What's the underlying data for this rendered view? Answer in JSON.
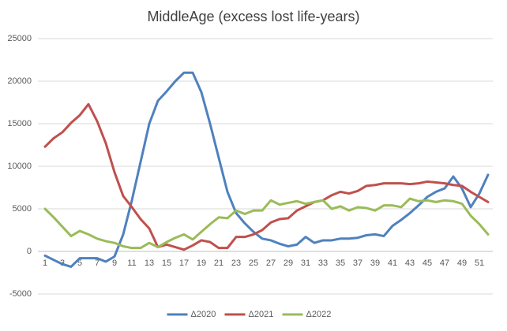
{
  "chart_data": {
    "type": "line",
    "title": "MiddleAge (excess lost life-years)",
    "x": [
      1,
      2,
      3,
      4,
      5,
      6,
      7,
      8,
      9,
      10,
      11,
      12,
      13,
      14,
      15,
      16,
      17,
      18,
      19,
      20,
      21,
      22,
      23,
      24,
      25,
      26,
      27,
      28,
      29,
      30,
      31,
      32,
      33,
      34,
      35,
      36,
      37,
      38,
      39,
      40,
      41,
      42,
      43,
      44,
      45,
      46,
      47,
      48,
      49,
      50,
      51,
      52
    ],
    "xlim": [
      1,
      52
    ],
    "xticks": [
      1,
      3,
      5,
      7,
      9,
      11,
      13,
      15,
      17,
      19,
      21,
      23,
      25,
      27,
      29,
      31,
      33,
      35,
      37,
      39,
      41,
      43,
      45,
      47,
      49,
      51
    ],
    "ylim": [
      -5000,
      25000
    ],
    "yticks": [
      -5000,
      0,
      5000,
      10000,
      15000,
      20000,
      25000
    ],
    "grid": true,
    "legend": "bottom",
    "series": [
      {
        "name": "Δ2020",
        "color": "#4f81bd",
        "values": [
          -500,
          -1000,
          -1500,
          -1800,
          -800,
          -800,
          -800,
          -1200,
          -600,
          2000,
          6000,
          10500,
          15000,
          17700,
          18800,
          20000,
          21000,
          21000,
          18700,
          15000,
          11000,
          7000,
          4500,
          3300,
          2300,
          1500,
          1300,
          900,
          600,
          800,
          1700,
          1000,
          1300,
          1300,
          1500,
          1500,
          1600,
          1900,
          2000,
          1800,
          3000,
          3700,
          4500,
          5400,
          6400,
          7000,
          7400,
          8800,
          7400,
          5200,
          6800,
          9000
        ]
      },
      {
        "name": "Δ2021",
        "color": "#c0504d",
        "values": [
          12300,
          13300,
          14000,
          15100,
          16000,
          17300,
          15300,
          12700,
          9300,
          6500,
          5200,
          3800,
          2700,
          500,
          800,
          500,
          200,
          700,
          1300,
          1100,
          400,
          400,
          1700,
          1700,
          2000,
          2500,
          3400,
          3800,
          3900,
          4800,
          5300,
          5800,
          6000,
          6600,
          7000,
          6800,
          7100,
          7700,
          7800,
          8000,
          8000,
          8000,
          7900,
          8000,
          8200,
          8100,
          8000,
          7800,
          7700,
          7000,
          6400,
          5800
        ]
      },
      {
        "name": "Δ2022",
        "color": "#9bbb59",
        "values": [
          5000,
          4000,
          2900,
          1800,
          2400,
          2000,
          1500,
          1200,
          1000,
          600,
          400,
          400,
          1000,
          500,
          1100,
          1600,
          2000,
          1400,
          2300,
          3200,
          4000,
          3900,
          4800,
          4400,
          4800,
          4800,
          6000,
          5500,
          5700,
          5900,
          5600,
          5800,
          6000,
          5000,
          5300,
          4800,
          5200,
          5100,
          4800,
          5400,
          5400,
          5200,
          6200,
          5900,
          6000,
          5800,
          6000,
          5900,
          5600,
          4200,
          3200,
          2000
        ]
      }
    ]
  }
}
